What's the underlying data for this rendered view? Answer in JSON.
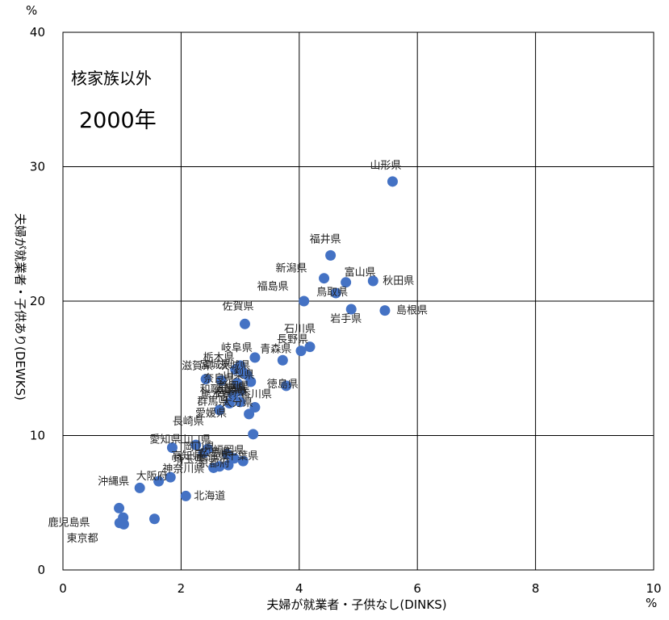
{
  "chart_data": {
    "type": "scatter",
    "annotation_title": "核家族以外",
    "annotation_year": "2000年",
    "xlabel": "夫婦が就業者・子供なし(DINKS)",
    "ylabel": "夫婦が就業者・子供あり(DEWKS)",
    "x_unit": "%",
    "y_unit": "%",
    "xlim": [
      0,
      10
    ],
    "ylim": [
      0,
      40
    ],
    "x_ticks": [
      0,
      2,
      4,
      6,
      8,
      10
    ],
    "y_ticks": [
      0,
      10,
      20,
      30,
      40
    ],
    "grid": true,
    "marker_color": "#4472C4",
    "points": [
      {
        "label": "山形県",
        "x": 5.58,
        "y": 28.9
      },
      {
        "label": "福井県",
        "x": 4.53,
        "y": 23.4
      },
      {
        "label": "新潟県",
        "x": 4.42,
        "y": 21.7
      },
      {
        "label": "富山県",
        "x": 4.79,
        "y": 21.4
      },
      {
        "label": "秋田県",
        "x": 5.25,
        "y": 21.5
      },
      {
        "label": "福島県",
        "x": 4.08,
        "y": 20.0
      },
      {
        "label": "鳥取県",
        "x": 4.62,
        "y": 20.6
      },
      {
        "label": "島根県",
        "x": 5.45,
        "y": 19.3
      },
      {
        "label": "岩手県",
        "x": 4.88,
        "y": 19.4
      },
      {
        "label": "佐賀県",
        "x": 3.08,
        "y": 18.3
      },
      {
        "label": "石川県",
        "x": 4.18,
        "y": 16.6
      },
      {
        "label": "長野県",
        "x": 4.03,
        "y": 16.3
      },
      {
        "label": "岐阜県",
        "x": 3.25,
        "y": 15.8
      },
      {
        "label": "青森県",
        "x": 3.72,
        "y": 15.6
      },
      {
        "label": "栃木県",
        "x": 3.0,
        "y": 15.2
      },
      {
        "label": "宮城県",
        "x": 2.92,
        "y": 14.9
      },
      {
        "label": "茨城県",
        "x": 3.05,
        "y": 14.7
      },
      {
        "label": "山梨県",
        "x": 3.12,
        "y": 14.5
      },
      {
        "label": "滋賀県",
        "x": 2.42,
        "y": 14.2
      },
      {
        "label": "奈良県",
        "x": 2.68,
        "y": 14.1
      },
      {
        "label": "三重県",
        "x": 3.18,
        "y": 14.0
      },
      {
        "label": "静岡県",
        "x": 2.95,
        "y": 13.9
      },
      {
        "label": "徳島県",
        "x": 3.78,
        "y": 13.7
      },
      {
        "label": "和歌山県",
        "x": 3.0,
        "y": 13.3
      },
      {
        "label": "熊本県",
        "x": 2.88,
        "y": 13.0
      },
      {
        "label": "群馬県",
        "x": 2.82,
        "y": 12.4
      },
      {
        "label": "香川県",
        "x": 3.25,
        "y": 12.1
      },
      {
        "label": "宮崎県",
        "x": 3.0,
        "y": 12.5
      },
      {
        "label": "愛媛県",
        "x": 2.65,
        "y": 11.9
      },
      {
        "label": "大分県",
        "x": 3.15,
        "y": 11.6
      },
      {
        "label": "長崎県",
        "x": 3.22,
        "y": 10.1
      },
      {
        "label": "愛知県",
        "x": 1.85,
        "y": 9.1
      },
      {
        "label": "山口県",
        "x": 2.25,
        "y": 9.3
      },
      {
        "label": "岡山県",
        "x": 2.45,
        "y": 9.0
      },
      {
        "label": "高知県",
        "x": 2.38,
        "y": 8.7
      },
      {
        "label": "広島県",
        "x": 2.78,
        "y": 8.6
      },
      {
        "label": "福岡県",
        "x": 2.9,
        "y": 8.3
      },
      {
        "label": "千葉県",
        "x": 3.05,
        "y": 8.1
      },
      {
        "label": "京都府",
        "x": 2.65,
        "y": 7.7
      },
      {
        "label": "兵庫県",
        "x": 2.8,
        "y": 7.8
      },
      {
        "label": "埼玉県",
        "x": 2.55,
        "y": 7.6
      },
      {
        "label": "神奈川県",
        "x": 1.82,
        "y": 6.9
      },
      {
        "label": "大阪府",
        "x": 1.62,
        "y": 6.6
      },
      {
        "label": "北海道",
        "x": 2.08,
        "y": 5.5
      },
      {
        "label": "沖縄県",
        "x": 1.3,
        "y": 6.1
      },
      {
        "label": "鹿児島県",
        "x": 0.95,
        "y": 4.6
      },
      {
        "label": "東京都",
        "x": 1.02,
        "y": 3.9
      },
      {
        "label": "",
        "x": 0.96,
        "y": 3.5
      },
      {
        "label": "",
        "x": 1.03,
        "y": 3.4
      },
      {
        "label": "",
        "x": 1.55,
        "y": 3.8
      }
    ],
    "annotations": [
      {
        "text": "山形県"
      },
      {
        "text": "福井県"
      },
      {
        "text": "新潟県"
      },
      {
        "text": "富山県"
      },
      {
        "text": "秋田県"
      },
      {
        "text": "福島県"
      },
      {
        "text": "鳥取県"
      },
      {
        "text": "島根県"
      },
      {
        "text": "岩手県"
      },
      {
        "text": "佐賀県"
      },
      {
        "text": "石川県"
      },
      {
        "text": "長野県"
      },
      {
        "text": "岐阜県"
      },
      {
        "text": "青森県"
      },
      {
        "text": "栃木県"
      },
      {
        "text": "宮城県"
      },
      {
        "text": "茨城県"
      },
      {
        "text": "山梨県"
      },
      {
        "text": "滋賀県"
      },
      {
        "text": "奈良県"
      },
      {
        "text": "三重県"
      },
      {
        "text": "静岡県"
      },
      {
        "text": "徳島県"
      },
      {
        "text": "和歌山県"
      },
      {
        "text": "熊本県"
      },
      {
        "text": "群馬県"
      },
      {
        "text": "香川県"
      },
      {
        "text": "宮崎県"
      },
      {
        "text": "愛媛県"
      },
      {
        "text": "大分県"
      },
      {
        "text": "長崎県"
      },
      {
        "text": "愛知県"
      },
      {
        "text": "山口県"
      },
      {
        "text": "岡山県"
      },
      {
        "text": "高知県"
      },
      {
        "text": "広島県"
      },
      {
        "text": "福岡県"
      },
      {
        "text": "千葉県"
      },
      {
        "text": "京都府"
      },
      {
        "text": "兵庫県"
      },
      {
        "text": "奈良県"
      },
      {
        "text": "埼玉県"
      },
      {
        "text": "沖縄県"
      },
      {
        "text": "神奈川県"
      },
      {
        "text": "大阪府"
      },
      {
        "text": "東京都"
      },
      {
        "text": "北海道"
      },
      {
        "text": "鹿児島県"
      },
      {
        "text": "静岡県"
      },
      {
        "text": "愛知県"
      }
    ]
  }
}
